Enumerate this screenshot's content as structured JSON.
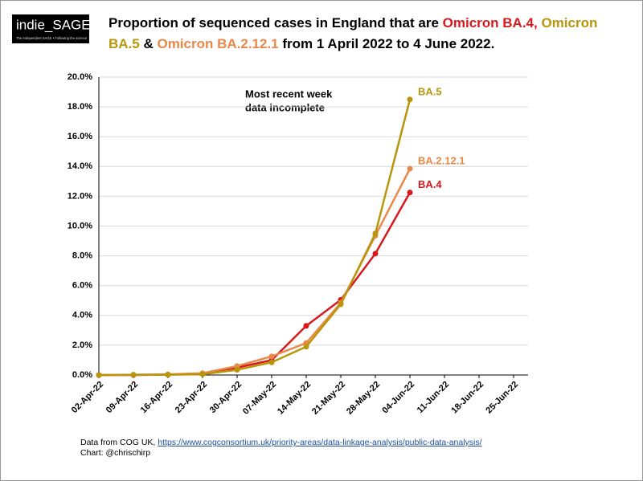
{
  "logo": {
    "name": "indie_SAGE",
    "tagline": "The Independent SAGE • Following the science"
  },
  "chart_data": {
    "type": "line",
    "title_lines": [
      [
        {
          "text": "Proportion of sequenced cases in England that are ",
          "color": "#000000"
        },
        {
          "text": "Omicron BA.4,",
          "color": "#d7191c"
        },
        {
          "text": " Omicron",
          "color": "#b8960c"
        }
      ],
      [
        {
          "text": "BA.5",
          "color": "#b8960c"
        },
        {
          "text": " & ",
          "color": "#000000"
        },
        {
          "text": "Omicron BA.2.12.1",
          "color": "#e8894a"
        },
        {
          "text": " from 1 April 2022 to 4 June 2022.",
          "color": "#000000"
        }
      ]
    ],
    "categories": [
      "02-Apr-22",
      "09-Apr-22",
      "16-Apr-22",
      "23-Apr-22",
      "30-Apr-22",
      "07-May-22",
      "14-May-22",
      "21-May-22",
      "28-May-22",
      "04-Jun-22",
      "11-Jun-22",
      "18-Jun-22",
      "25-Jun-22"
    ],
    "series": [
      {
        "name": "BA.4",
        "color": "#d7191c",
        "values": [
          0,
          0,
          0.02,
          0.1,
          0.5,
          1.0,
          3.3,
          5.05,
          8.15,
          12.25,
          null,
          null,
          null
        ]
      },
      {
        "name": "BA.2.12.1",
        "color": "#e8894a",
        "values": [
          0,
          0.02,
          0.05,
          0.12,
          0.6,
          1.25,
          2.15,
          4.85,
          9.35,
          13.85,
          null,
          null,
          null
        ]
      },
      {
        "name": "BA.5",
        "color": "#b8960c",
        "values": [
          0,
          0.01,
          0.02,
          0.05,
          0.35,
          0.85,
          1.9,
          4.75,
          9.5,
          18.5,
          null,
          null,
          null
        ]
      }
    ],
    "ylim": [
      0,
      20
    ],
    "yticks": [
      {
        "value": 0,
        "label": "0.0%"
      },
      {
        "value": 2,
        "label": "2.0%"
      },
      {
        "value": 4,
        "label": "4.0%"
      },
      {
        "value": 6,
        "label": "6.0%"
      },
      {
        "value": 8,
        "label": "8.0%"
      },
      {
        "value": 10,
        "label": "10.0%"
      },
      {
        "value": 12,
        "label": "12.0%"
      },
      {
        "value": 14,
        "label": "14.0%"
      },
      {
        "value": 16,
        "label": "16.0%"
      },
      {
        "value": 18,
        "label": "18.0%"
      },
      {
        "value": 20,
        "label": "20.0%"
      }
    ],
    "grid": true,
    "annotation": [
      "Most recent week",
      "data incomplete"
    ],
    "source_prefix": "Data from COG UK, ",
    "source_url": "https://www.cogconsortium.uk/priority-areas/data-linkage-analysis/public-data-analysis/",
    "credit": "Chart: @chrischirp"
  }
}
